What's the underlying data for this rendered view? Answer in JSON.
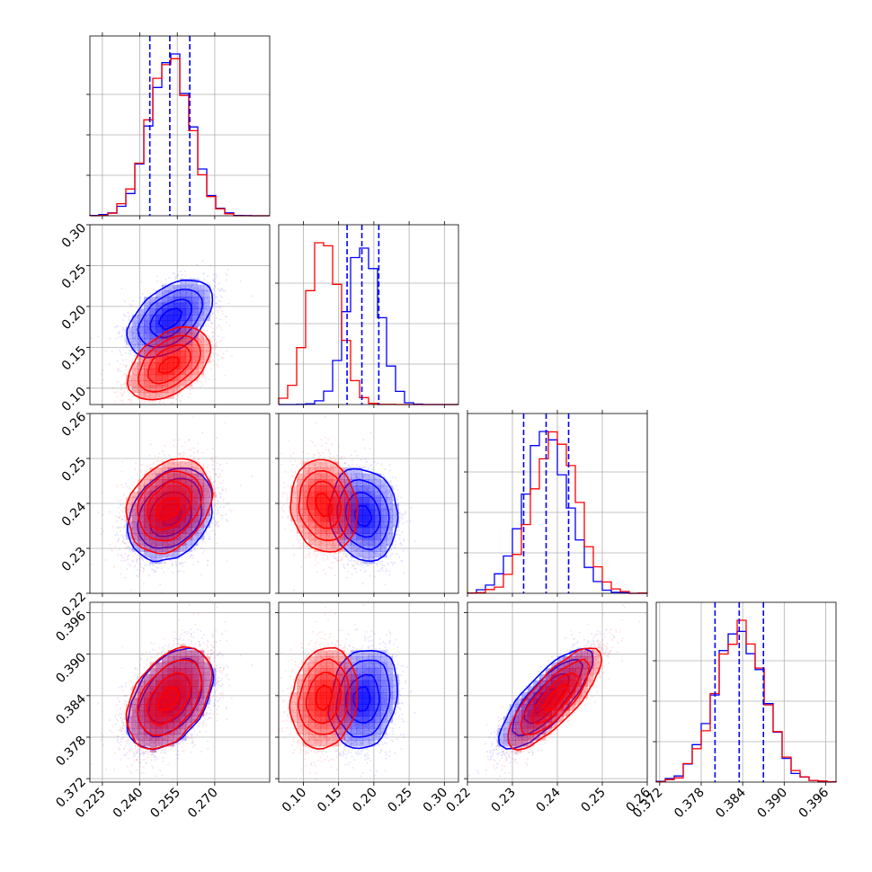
{
  "chart_data": {
    "type": "corner",
    "grid": true,
    "colors": {
      "series_a": "#0000ff",
      "series_b": "#ff0000",
      "quantile_lines": "#0000ff"
    },
    "series": [
      {
        "color": "#0000ff",
        "mean": [
          0.252,
          0.185,
          0.2375,
          0.3835
        ],
        "sd": [
          0.008,
          0.022,
          0.005,
          0.0035
        ],
        "corr": [
          [
            1,
            0.5,
            0.3,
            0.45
          ],
          [
            0.5,
            1,
            -0.15,
            0.15
          ],
          [
            0.3,
            -0.15,
            1,
            0.85
          ],
          [
            0.45,
            0.15,
            0.85,
            1
          ]
        ]
      },
      {
        "color": "#ff0000",
        "mean": [
          0.252,
          0.13,
          0.2395,
          0.3837
        ],
        "sd": [
          0.008,
          0.022,
          0.005,
          0.0035
        ],
        "corr": [
          [
            1,
            0.5,
            0.3,
            0.45
          ],
          [
            0.5,
            1,
            -0.15,
            0.15
          ],
          [
            0.3,
            -0.15,
            1,
            0.85
          ],
          [
            0.45,
            0.15,
            0.85,
            1
          ]
        ]
      }
    ],
    "quantiles": [
      [
        0.244,
        0.252,
        0.26
      ],
      [
        0.162,
        0.183,
        0.207
      ],
      [
        0.2325,
        0.2375,
        0.2425
      ],
      [
        0.38,
        0.3835,
        0.387
      ]
    ],
    "panels": [
      {
        "xlim": [
          0.22,
          0.292
        ],
        "ylim": [
          0.112,
          0.292
        ],
        "xticks": [
          0.225,
          0.24,
          0.255,
          0.27
        ],
        "xtick_labels": [
          "0.225",
          "0.240",
          "0.255",
          "0.270"
        ],
        "yticks": [
          0.1,
          0.2,
          0.3
        ]
      },
      {
        "xlim": [
          0.065,
          0.32
        ],
        "ylim": [
          0.08,
          0.3
        ],
        "xticks": [
          0.1,
          0.15,
          0.2,
          0.25,
          0.3
        ],
        "xtick_labels": [
          "0.10",
          "0.15",
          "0.20",
          "0.25",
          "0.30"
        ],
        "yticks": [
          0.1,
          0.15,
          0.2,
          0.25,
          0.3
        ],
        "ytick_labels": [
          "0.10",
          "0.15",
          "0.20",
          "0.25",
          "0.30"
        ]
      },
      {
        "xlim": [
          0.22,
          0.26
        ],
        "ylim": [
          0.22,
          0.26
        ],
        "xticks": [
          0.22,
          0.23,
          0.24,
          0.25,
          0.26
        ],
        "xtick_labels": [
          "0.22",
          "0.23",
          "0.24",
          "0.25",
          "0.26"
        ],
        "yticks": [
          0.22,
          0.23,
          0.24,
          0.25,
          0.26
        ],
        "ytick_labels": [
          "0.22",
          "0.23",
          "0.24",
          "0.25",
          "0.26"
        ]
      },
      {
        "xlim": [
          0.3715,
          0.3975
        ],
        "ylim": [
          0.3715,
          0.3975
        ],
        "xticks": [
          0.372,
          0.378,
          0.384,
          0.39,
          0.396
        ],
        "xtick_labels": [
          "0.372",
          "0.378",
          "0.384",
          "0.390",
          "0.396"
        ],
        "yticks": [
          0.372,
          0.378,
          0.384,
          0.39,
          0.396
        ],
        "ytick_labels": [
          "0.372",
          "0.378",
          "0.384",
          "0.390",
          "0.396"
        ]
      }
    ],
    "histogram_bins": 20,
    "contour_levels": [
      0.118,
      0.393,
      0.675,
      0.864
    ]
  }
}
